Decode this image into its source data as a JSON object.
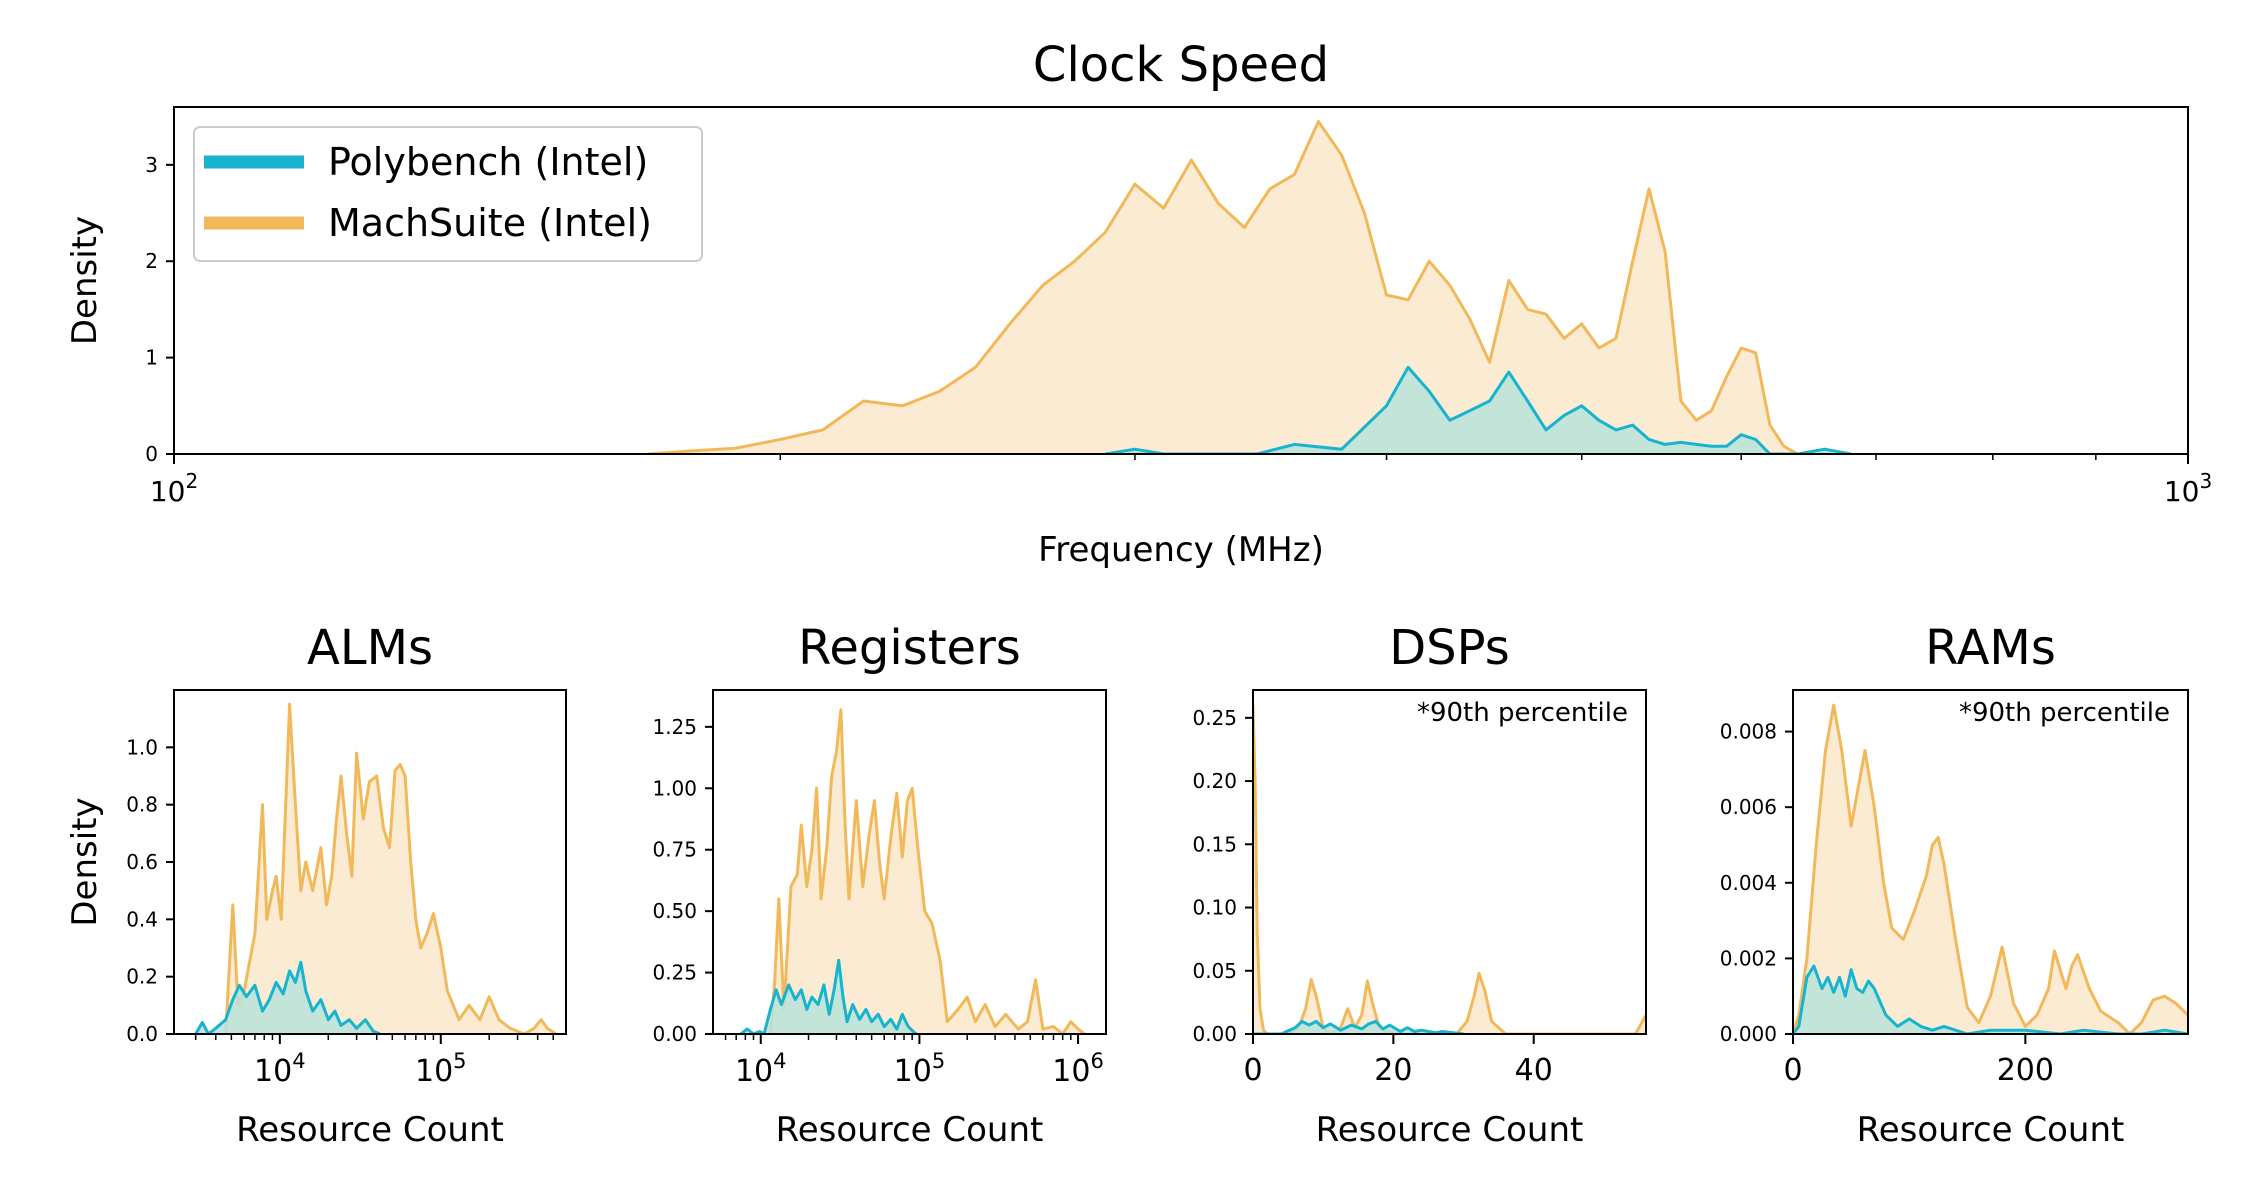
{
  "colors": {
    "polybench": "#17b3cf",
    "machsuite": "#f2b95a",
    "polybench_fill": "#b8e3d8",
    "machsuite_fill": "#fcebd3"
  },
  "chart_data": [
    {
      "id": "clock",
      "type": "area",
      "title": "Clock Speed",
      "xlabel": "Frequency (MHz)",
      "ylabel": "Density",
      "xscale": "log",
      "xlim": [
        100,
        1000
      ],
      "ylim": [
        0,
        3.6
      ],
      "xticks": [
        {
          "v": 100,
          "b": "10",
          "e": "2"
        },
        {
          "v": 1000,
          "b": "10",
          "e": "3"
        }
      ],
      "yticks": [
        "0",
        "1",
        "2",
        "3"
      ],
      "legend": {
        "placement": "top-left",
        "entries": [
          "Polybench (Intel)",
          "MachSuite (Intel)"
        ]
      },
      "series": [
        {
          "name": "MachSuite (Intel)",
          "x": [
            172,
            180,
            190,
            200,
            210,
            220,
            230,
            240,
            250,
            260,
            270,
            280,
            290,
            300,
            310,
            320,
            330,
            340,
            350,
            360,
            370,
            380,
            390,
            400,
            410,
            420,
            430,
            440,
            450,
            460,
            470,
            480,
            490,
            500,
            510,
            520,
            530,
            540,
            550,
            560,
            570,
            580,
            590,
            600,
            610,
            620,
            630,
            640
          ],
          "y": [
            0.0,
            0.03,
            0.06,
            0.15,
            0.25,
            0.55,
            0.5,
            0.65,
            0.9,
            1.35,
            1.75,
            2.0,
            2.3,
            2.8,
            2.55,
            3.05,
            2.6,
            2.35,
            2.75,
            2.9,
            3.45,
            3.1,
            2.5,
            1.65,
            1.6,
            2.0,
            1.75,
            1.4,
            0.95,
            1.8,
            1.5,
            1.45,
            1.2,
            1.35,
            1.1,
            1.2,
            2.0,
            2.75,
            2.1,
            0.55,
            0.35,
            0.45,
            0.8,
            1.1,
            1.05,
            0.3,
            0.08,
            0.0
          ]
        },
        {
          "name": "Polybench (Intel)",
          "x": [
            290,
            300,
            310,
            320,
            345,
            360,
            380,
            400,
            410,
            420,
            430,
            440,
            450,
            460,
            470,
            480,
            490,
            500,
            510,
            520,
            530,
            540,
            550,
            560,
            570,
            580,
            590,
            600,
            610,
            620,
            640,
            660,
            680
          ],
          "y": [
            0.0,
            0.05,
            0.0,
            0.0,
            0.0,
            0.1,
            0.05,
            0.5,
            0.9,
            0.65,
            0.35,
            0.45,
            0.55,
            0.85,
            0.55,
            0.25,
            0.4,
            0.5,
            0.35,
            0.25,
            0.3,
            0.15,
            0.1,
            0.12,
            0.1,
            0.08,
            0.08,
            0.2,
            0.15,
            0.0,
            0.0,
            0.05,
            0.0
          ]
        }
      ]
    },
    {
      "id": "alms",
      "type": "area",
      "title": "ALMs",
      "xlabel": "Resource Count",
      "ylabel": "Density",
      "xscale": "log",
      "xlim": [
        2200,
        600000
      ],
      "ylim": [
        0,
        1.2
      ],
      "xticks": [
        {
          "v": 10000,
          "b": "10",
          "e": "4"
        },
        {
          "v": 100000,
          "b": "10",
          "e": "5"
        }
      ],
      "yticks": [
        "0.0",
        "0.2",
        "0.4",
        "0.6",
        "0.8",
        "1.0"
      ],
      "series": [
        {
          "name": "MachSuite (Intel)",
          "x": [
            4600,
            5100,
            5500,
            6000,
            7000,
            7800,
            8300,
            9000,
            9500,
            10200,
            11500,
            12500,
            13500,
            14500,
            16000,
            18000,
            19500,
            21000,
            22500,
            24000,
            26000,
            28000,
            30000,
            33000,
            36000,
            40000,
            44000,
            48000,
            52000,
            56000,
            60000,
            65000,
            70000,
            75000,
            82000,
            90000,
            100000,
            110000,
            130000,
            150000,
            175000,
            200000,
            230000,
            270000,
            330000,
            380000,
            420000,
            460000,
            520000
          ],
          "y": [
            0.0,
            0.45,
            0.1,
            0.15,
            0.35,
            0.8,
            0.4,
            0.5,
            0.55,
            0.4,
            1.15,
            0.8,
            0.5,
            0.6,
            0.5,
            0.65,
            0.45,
            0.55,
            0.75,
            0.9,
            0.7,
            0.55,
            0.98,
            0.75,
            0.88,
            0.9,
            0.72,
            0.65,
            0.92,
            0.94,
            0.9,
            0.6,
            0.4,
            0.3,
            0.35,
            0.42,
            0.3,
            0.15,
            0.05,
            0.1,
            0.05,
            0.13,
            0.05,
            0.02,
            0.0,
            0.02,
            0.05,
            0.02,
            0.0
          ]
        },
        {
          "name": "Polybench (Intel)",
          "x": [
            3000,
            3300,
            3600,
            4000,
            4600,
            5100,
            5600,
            6200,
            7000,
            7800,
            8600,
            9500,
            10500,
            11500,
            12500,
            13500,
            14500,
            16000,
            18000,
            20000,
            22000,
            24000,
            27000,
            30000,
            34000,
            38000,
            42000
          ],
          "y": [
            0.0,
            0.04,
            0.0,
            0.02,
            0.05,
            0.12,
            0.17,
            0.13,
            0.17,
            0.08,
            0.12,
            0.18,
            0.14,
            0.22,
            0.18,
            0.25,
            0.15,
            0.08,
            0.12,
            0.05,
            0.08,
            0.03,
            0.05,
            0.02,
            0.05,
            0.01,
            0.0
          ]
        }
      ]
    },
    {
      "id": "registers",
      "type": "area",
      "title": "Registers",
      "xlabel": "Resource Count",
      "xscale": "log",
      "xlim": [
        5000,
        1500000
      ],
      "ylim": [
        0,
        1.4
      ],
      "xticks": [
        {
          "v": 10000,
          "b": "10",
          "e": "4"
        },
        {
          "v": 100000,
          "b": "10",
          "e": "5"
        },
        {
          "v": 1000000,
          "b": "10",
          "e": "6"
        }
      ],
      "yticks": [
        "0.00",
        "0.25",
        "0.50",
        "0.75",
        "1.00",
        "1.25"
      ],
      "series": [
        {
          "name": "MachSuite (Intel)",
          "x": [
            11500,
            12200,
            13000,
            14000,
            15500,
            17000,
            18000,
            19500,
            21000,
            22500,
            24000,
            26000,
            28000,
            30000,
            32000,
            34000,
            36000,
            40000,
            44000,
            48000,
            52000,
            56000,
            60000,
            66000,
            72000,
            78000,
            84000,
            90000,
            98000,
            108000,
            120000,
            135000,
            150000,
            175000,
            200000,
            225000,
            260000,
            300000,
            350000,
            420000,
            480000,
            540000,
            600000,
            700000,
            800000,
            900000,
            1000000,
            1100000
          ],
          "y": [
            0.0,
            0.2,
            0.55,
            0.1,
            0.6,
            0.65,
            0.85,
            0.6,
            0.75,
            1.0,
            0.55,
            0.75,
            1.05,
            1.15,
            1.32,
            0.85,
            0.55,
            0.95,
            0.6,
            0.8,
            0.95,
            0.7,
            0.55,
            0.8,
            0.98,
            0.72,
            0.95,
            1.0,
            0.75,
            0.5,
            0.45,
            0.3,
            0.05,
            0.1,
            0.15,
            0.05,
            0.12,
            0.03,
            0.08,
            0.02,
            0.05,
            0.22,
            0.02,
            0.03,
            0.0,
            0.05,
            0.02,
            0.0
          ]
        },
        {
          "name": "Polybench (Intel)",
          "x": [
            7500,
            8200,
            9000,
            9800,
            10500,
            11500,
            12500,
            13500,
            15000,
            16500,
            18000,
            19500,
            21000,
            23000,
            25000,
            27000,
            29000,
            31000,
            33000,
            35000,
            38000,
            42000,
            46000,
            50000,
            55000,
            60000,
            66000,
            72000,
            78000,
            85000,
            95000
          ],
          "y": [
            0.0,
            0.02,
            0.0,
            0.01,
            0.0,
            0.1,
            0.18,
            0.12,
            0.2,
            0.14,
            0.18,
            0.1,
            0.15,
            0.12,
            0.2,
            0.08,
            0.18,
            0.3,
            0.15,
            0.05,
            0.12,
            0.06,
            0.1,
            0.05,
            0.08,
            0.03,
            0.06,
            0.02,
            0.08,
            0.03,
            0.0
          ]
        }
      ]
    },
    {
      "id": "dsps",
      "type": "area",
      "title": "DSPs",
      "xlabel": "Resource Count",
      "xscale": "linear",
      "xlim": [
        0,
        56
      ],
      "ylim": [
        0,
        0.272
      ],
      "xticks": [
        {
          "v": 0,
          "t": "0"
        },
        {
          "v": 20,
          "t": "20"
        },
        {
          "v": 40,
          "t": "40"
        }
      ],
      "yticks": [
        "0.00",
        "0.05",
        "0.10",
        "0.15",
        "0.20",
        "0.25"
      ],
      "annotation": "*90th percentile",
      "series": [
        {
          "name": "MachSuite (Intel)",
          "x": [
            0,
            0.3,
            0.6,
            1.0,
            1.5,
            2.0,
            3.0,
            5.0,
            6.5,
            7.5,
            8.3,
            9.0,
            10.0,
            11.0,
            12.5,
            13.5,
            14.5,
            15.5,
            16.3,
            17.0,
            18.0,
            20.0,
            25.0,
            29.0,
            30.5,
            31.5,
            32.2,
            33.0,
            34.0,
            36.0,
            45.0,
            52.0,
            54.5,
            56.0
          ],
          "y": [
            0.26,
            0.2,
            0.08,
            0.02,
            0.003,
            0.0,
            0.0,
            0.0,
            0.005,
            0.02,
            0.043,
            0.03,
            0.005,
            0.0,
            0.005,
            0.02,
            0.005,
            0.015,
            0.042,
            0.025,
            0.005,
            0.0,
            0.0,
            0.0,
            0.01,
            0.03,
            0.048,
            0.035,
            0.01,
            0.0,
            0.0,
            0.0,
            0.0,
            0.015
          ]
        },
        {
          "name": "Polybench (Intel)",
          "x": [
            0,
            4.0,
            6.0,
            7.0,
            8.0,
            9.0,
            10.0,
            11.0,
            12.5,
            14.0,
            15.5,
            16.5,
            17.5,
            18.5,
            19.5,
            21.0,
            22.0,
            23.0,
            24.0,
            26.0,
            27.0,
            30.0
          ],
          "y": [
            0.0,
            0.0,
            0.005,
            0.01,
            0.007,
            0.01,
            0.005,
            0.008,
            0.003,
            0.007,
            0.004,
            0.008,
            0.01,
            0.004,
            0.007,
            0.002,
            0.005,
            0.002,
            0.003,
            0.001,
            0.002,
            0.0
          ]
        }
      ]
    },
    {
      "id": "rams",
      "type": "area",
      "title": "RAMs",
      "xlabel": "Resource Count",
      "xscale": "linear",
      "xlim": [
        0,
        340
      ],
      "ylim": [
        0,
        0.0091
      ],
      "xticks": [
        {
          "v": 0,
          "t": "0"
        },
        {
          "v": 200,
          "t": "200"
        }
      ],
      "yticks": [
        "0.000",
        "0.002",
        "0.004",
        "0.006",
        "0.008"
      ],
      "annotation": "*90th percentile",
      "series": [
        {
          "name": "MachSuite (Intel)",
          "x": [
            0,
            5,
            12,
            20,
            28,
            35,
            42,
            50,
            56,
            62,
            70,
            78,
            85,
            95,
            105,
            115,
            120,
            125,
            130,
            140,
            150,
            160,
            170,
            180,
            190,
            200,
            210,
            220,
            225,
            235,
            240,
            245,
            255,
            265,
            280,
            290,
            300,
            310,
            320,
            330,
            340
          ],
          "y": [
            0.0,
            0.0005,
            0.002,
            0.005,
            0.0075,
            0.0087,
            0.0075,
            0.0055,
            0.0065,
            0.0075,
            0.006,
            0.004,
            0.0028,
            0.0025,
            0.0033,
            0.0042,
            0.005,
            0.0052,
            0.0045,
            0.0025,
            0.0007,
            0.0003,
            0.001,
            0.0023,
            0.0008,
            0.0002,
            0.0005,
            0.0012,
            0.0022,
            0.0012,
            0.0018,
            0.0021,
            0.0012,
            0.0006,
            0.0003,
            0.0,
            0.0003,
            0.0009,
            0.001,
            0.0008,
            0.0005
          ]
        },
        {
          "name": "Polybench (Intel)",
          "x": [
            0,
            5,
            12,
            18,
            25,
            30,
            35,
            40,
            45,
            50,
            55,
            60,
            65,
            70,
            80,
            90,
            100,
            110,
            120,
            130,
            150,
            170,
            200,
            230,
            250,
            280,
            300,
            320,
            340
          ],
          "y": [
            0.0,
            0.0002,
            0.0015,
            0.0018,
            0.0012,
            0.0015,
            0.0011,
            0.0015,
            0.001,
            0.0017,
            0.0012,
            0.0011,
            0.0014,
            0.0012,
            0.0005,
            0.0002,
            0.0004,
            0.0002,
            0.0001,
            0.0002,
            0.0,
            0.0001,
            0.0001,
            0.0,
            0.0001,
            0.0,
            0.0,
            0.0001,
            0.0
          ]
        }
      ]
    }
  ]
}
